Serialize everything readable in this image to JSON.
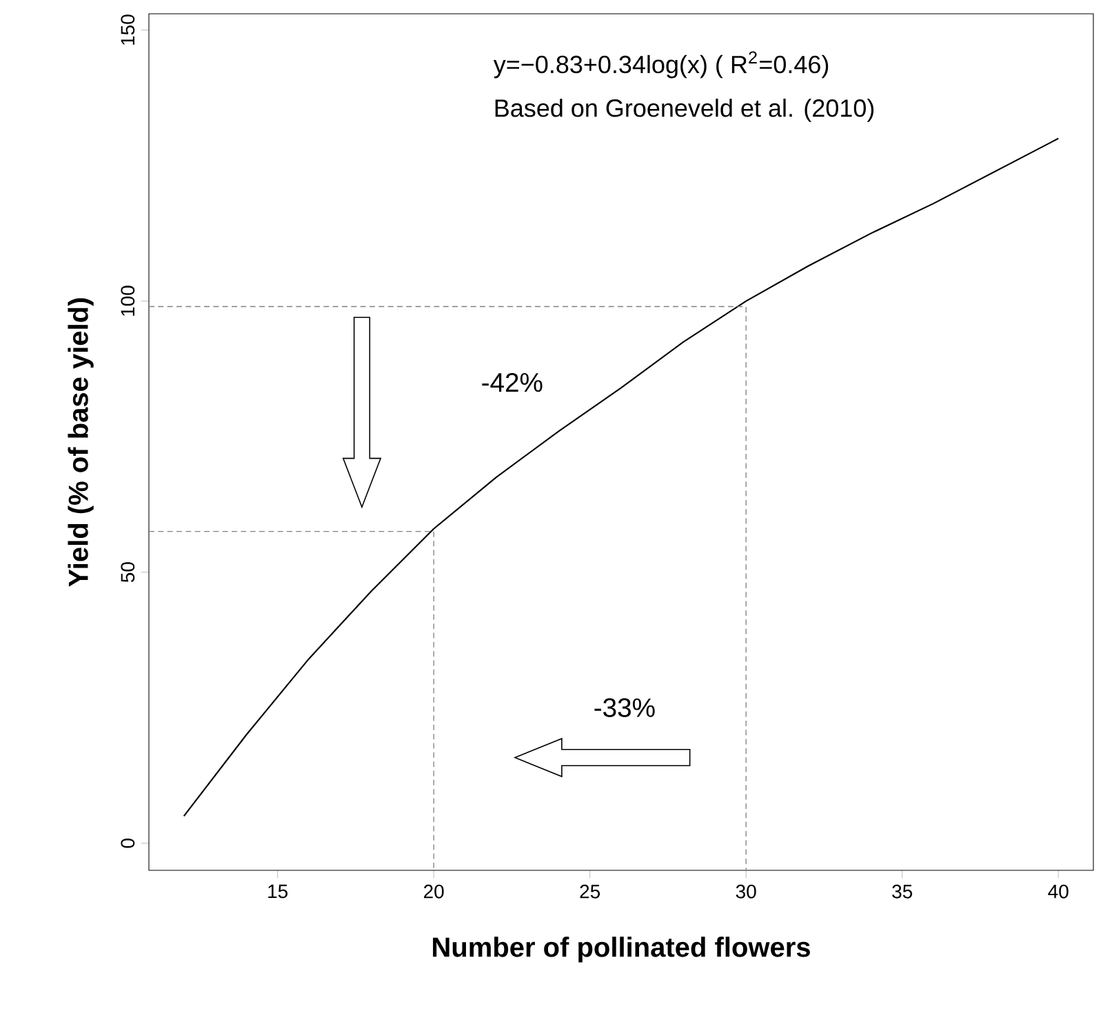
{
  "chart_data": {
    "type": "line",
    "xlabel": "Number of pollinated flowers",
    "ylabel": "Yield (% of base yield)",
    "xlim": [
      10.88,
      41.12
    ],
    "ylim": [
      -5,
      153
    ],
    "xticks": [
      15,
      20,
      25,
      30,
      35,
      40
    ],
    "yticks": [
      0,
      50,
      100,
      150
    ],
    "grid": false,
    "marker": "none",
    "series": [
      {
        "color": "#000000",
        "line_style": "solid",
        "x": [
          12,
          14,
          16,
          18,
          20,
          22,
          24,
          26,
          28,
          30,
          32,
          34,
          36,
          38,
          40
        ],
        "values": [
          5,
          20,
          34,
          46.5,
          58,
          67.5,
          76,
          84,
          92.5,
          100,
          106.5,
          112.5,
          118,
          124,
          130
        ]
      },
      {
        "color": "#808080",
        "line_style": "dashed",
        "x": [
          10.88,
          30,
          30
        ],
        "values": [
          99,
          99,
          -5
        ]
      },
      {
        "color": "#808080",
        "line_style": "dashed",
        "x": [
          10.88,
          20,
          20
        ],
        "values": [
          57.5,
          57.5,
          -5
        ]
      }
    ],
    "annotations": [
      "y=−0.83+0.34log(x) ( R$^{2}$=0.46)",
      "Based on Groeneveld et al. (2010)",
      "-42%",
      "-33%"
    ]
  }
}
